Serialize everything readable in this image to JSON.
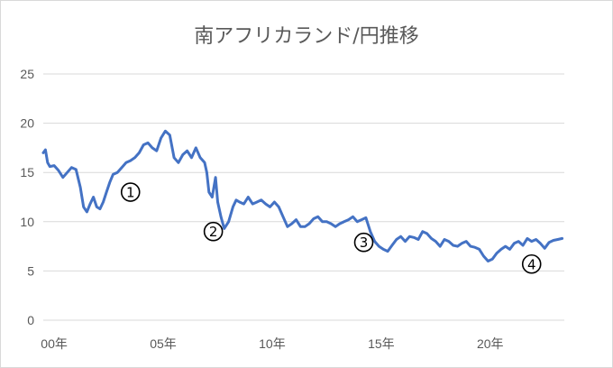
{
  "chart_data": {
    "type": "line",
    "title": "南アフリカランド/円推移",
    "xlabel": "",
    "ylabel": "",
    "xlim": [
      2000.0,
      2023.9
    ],
    "ylim": [
      0,
      25
    ],
    "yticks": [
      0,
      5,
      10,
      15,
      20,
      25
    ],
    "xticks": [
      {
        "x": 2000.5,
        "label": "00年"
      },
      {
        "x": 2005.5,
        "label": "05年"
      },
      {
        "x": 2010.5,
        "label": "10年"
      },
      {
        "x": 2015.5,
        "label": "15年"
      },
      {
        "x": 2020.5,
        "label": "20年"
      }
    ],
    "grid": true,
    "legend": "none",
    "series_color": "#4472c4",
    "series": [
      {
        "x": [
          2000.0,
          2000.1,
          2000.2,
          2000.3,
          2000.5,
          2000.7,
          2000.9,
          2001.1,
          2001.3,
          2001.5,
          2001.7,
          2001.85,
          2002.0,
          2002.15,
          2002.3,
          2002.45,
          2002.6,
          2002.75,
          2002.9,
          2003.05,
          2003.2,
          2003.4,
          2003.6,
          2003.8,
          2004.0,
          2004.2,
          2004.4,
          2004.6,
          2004.8,
          2005.0,
          2005.2,
          2005.4,
          2005.6,
          2005.8,
          2006.0,
          2006.2,
          2006.4,
          2006.6,
          2006.8,
          2007.0,
          2007.2,
          2007.4,
          2007.5,
          2007.6,
          2007.75,
          2007.9,
          2008.0,
          2008.15,
          2008.3,
          2008.5,
          2008.7,
          2008.85,
          2009.0,
          2009.2,
          2009.4,
          2009.6,
          2009.8,
          2010.0,
          2010.2,
          2010.4,
          2010.6,
          2010.8,
          2011.0,
          2011.2,
          2011.4,
          2011.6,
          2011.8,
          2012.0,
          2012.2,
          2012.4,
          2012.6,
          2012.8,
          2013.0,
          2013.2,
          2013.4,
          2013.6,
          2013.8,
          2014.0,
          2014.2,
          2014.4,
          2014.6,
          2014.8,
          2015.0,
          2015.2,
          2015.4,
          2015.6,
          2015.8,
          2016.0,
          2016.2,
          2016.4,
          2016.6,
          2016.8,
          2017.0,
          2017.2,
          2017.4,
          2017.6,
          2017.8,
          2018.0,
          2018.2,
          2018.4,
          2018.6,
          2018.8,
          2019.0,
          2019.2,
          2019.4,
          2019.6,
          2019.8,
          2020.0,
          2020.2,
          2020.4,
          2020.6,
          2020.8,
          2021.0,
          2021.2,
          2021.4,
          2021.6,
          2021.8,
          2022.0,
          2022.2,
          2022.4,
          2022.6,
          2022.8,
          2023.0,
          2023.2,
          2023.4,
          2023.6,
          2023.8
        ],
        "values": [
          17.0,
          17.3,
          16.0,
          15.6,
          15.7,
          15.2,
          14.5,
          15.0,
          15.5,
          15.3,
          13.5,
          11.5,
          11.0,
          11.8,
          12.5,
          11.5,
          11.3,
          12.0,
          13.0,
          14.0,
          14.8,
          15.0,
          15.5,
          16.0,
          16.2,
          16.5,
          17.0,
          17.8,
          18.0,
          17.5,
          17.2,
          18.5,
          19.2,
          18.8,
          16.5,
          16.0,
          16.8,
          17.2,
          16.5,
          17.5,
          16.5,
          16.0,
          15.0,
          13.0,
          12.5,
          14.5,
          12.0,
          10.5,
          9.3,
          10.0,
          11.5,
          12.2,
          12.0,
          11.8,
          12.5,
          11.8,
          12.0,
          12.2,
          11.8,
          11.5,
          12.0,
          11.5,
          10.5,
          9.5,
          9.8,
          10.2,
          9.5,
          9.5,
          9.8,
          10.3,
          10.5,
          10.0,
          10.0,
          9.8,
          9.5,
          9.8,
          10.0,
          10.2,
          10.5,
          10.0,
          10.2,
          10.4,
          9.0,
          8.0,
          7.5,
          7.2,
          7.0,
          7.6,
          8.2,
          8.5,
          8.0,
          8.5,
          8.4,
          8.2,
          9.0,
          8.8,
          8.3,
          8.0,
          7.5,
          8.2,
          8.0,
          7.6,
          7.5,
          7.8,
          8.0,
          7.5,
          7.4,
          7.2,
          6.5,
          6.0,
          6.2,
          6.8,
          7.2,
          7.5,
          7.2,
          7.8,
          8.0,
          7.6,
          8.3,
          8.0,
          8.2,
          7.8,
          7.3,
          7.9,
          8.1,
          8.2,
          8.3
        ]
      }
    ],
    "annotations": [
      {
        "label": "①",
        "x": 2004.0,
        "y": 13.0
      },
      {
        "label": "②",
        "x": 2007.8,
        "y": 9.0
      },
      {
        "label": "③",
        "x": 2014.7,
        "y": 7.9
      },
      {
        "label": "④",
        "x": 2022.4,
        "y": 5.7
      }
    ]
  }
}
